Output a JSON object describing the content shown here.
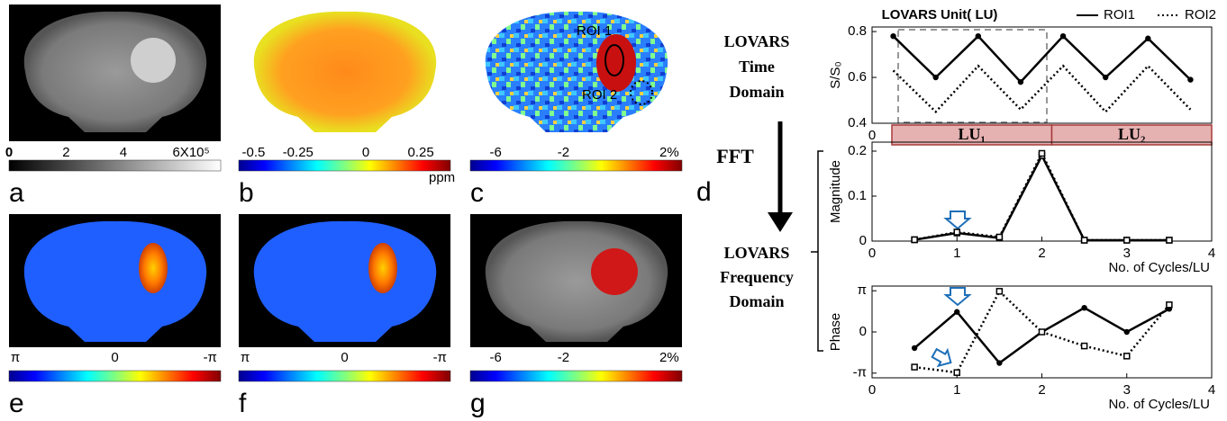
{
  "panels": [
    {
      "letter": "a",
      "colorbar": [
        "0",
        "2",
        "4",
        "6X10⁵"
      ]
    },
    {
      "letter": "b",
      "colorbar": [
        "-0.5",
        "-0.25",
        "0",
        "0.25",
        "ppm"
      ]
    },
    {
      "letter": "c",
      "colorbar": [
        "-6",
        "-2",
        "2%"
      ],
      "roi_labels": [
        "ROI 1",
        "ROI 2"
      ]
    },
    {
      "letter": "e",
      "colorbar": [
        "π",
        "0",
        "-π"
      ]
    },
    {
      "letter": "f",
      "colorbar": [
        "π",
        "0",
        "-π"
      ]
    },
    {
      "letter": "g",
      "colorbar": [
        "-6",
        "-2",
        "2%"
      ]
    }
  ],
  "panel_d": {
    "letter": "d"
  },
  "diagram": {
    "time_domain": [
      "LOVARS",
      "Time",
      "Domain"
    ],
    "transform": "FFT",
    "frequency_domain": [
      "LOVARS",
      "Frequency",
      "Domain"
    ]
  },
  "chart_data": [
    {
      "type": "line",
      "title": "LOVARS Unit( LU)",
      "y_label": "S/S₀",
      "lu_labels": [
        "LU₁",
        "LU₂"
      ],
      "x": [
        0.5,
        1.5,
        2.5,
        3.5,
        4.5,
        5.5,
        6.5,
        7.5
      ],
      "xlim": [
        0,
        8
      ],
      "xticks": [
        0
      ],
      "ylim": [
        0.4,
        0.82
      ],
      "yticks": [
        0.4,
        0.6,
        0.8
      ],
      "legend": "top-right",
      "series": [
        {
          "name": "ROI1",
          "color": "#000000",
          "line_style": "solid",
          "marker": "circle",
          "values": [
            0.78,
            0.6,
            0.78,
            0.58,
            0.78,
            0.6,
            0.77,
            0.59
          ]
        },
        {
          "name": "ROI2",
          "color": "#000000",
          "line_style": "dotted",
          "marker": "none",
          "values": [
            0.63,
            0.45,
            0.65,
            0.46,
            0.65,
            0.45,
            0.65,
            0.46
          ]
        }
      ]
    },
    {
      "type": "line",
      "y_label": "Magnitude",
      "x_label": "No. of Cycles/LU",
      "x": [
        0.5,
        1,
        1.5,
        2,
        2.5,
        3,
        3.5
      ],
      "xlim": [
        0,
        4
      ],
      "xticks": [
        0,
        1,
        2,
        3,
        4
      ],
      "ylim": [
        0,
        0.22
      ],
      "yticks": [
        0,
        0.1,
        0.2
      ],
      "series": [
        {
          "name": "ROI1",
          "color": "#000000",
          "line_style": "solid",
          "marker": "square",
          "values": [
            0.003,
            0.018,
            0.007,
            0.19,
            0.002,
            0.002,
            0.002
          ]
        },
        {
          "name": "ROI2",
          "color": "#000000",
          "line_style": "dotted",
          "marker": "square",
          "values": [
            0.003,
            0.02,
            0.009,
            0.195,
            0.002,
            0.002,
            0.002
          ]
        }
      ]
    },
    {
      "type": "line",
      "y_label": "Phase",
      "x_label": "No. of Cycles/LU",
      "x": [
        0.5,
        1,
        1.5,
        2,
        2.5,
        3,
        3.5
      ],
      "xlim": [
        0,
        4
      ],
      "xticks": [
        0,
        1,
        2,
        3,
        4
      ],
      "ylim": [
        -3.5,
        3.5
      ],
      "yticks": [
        {
          "value": 3.1416,
          "label": "π"
        },
        0,
        {
          "value": -3.1416,
          "label": "-π"
        }
      ],
      "series": [
        {
          "name": "ROI1",
          "color": "#000000",
          "line_style": "solid",
          "marker": "circle",
          "values": [
            -1.23,
            1.53,
            -2.37,
            0,
            1.84,
            0,
            1.76
          ]
        },
        {
          "name": "ROI2",
          "color": "#000000",
          "line_style": "dotted",
          "marker": "square",
          "values": [
            -2.68,
            -3.1,
            3.1,
            0,
            -1.07,
            -1.84,
            2.07
          ]
        }
      ]
    }
  ]
}
